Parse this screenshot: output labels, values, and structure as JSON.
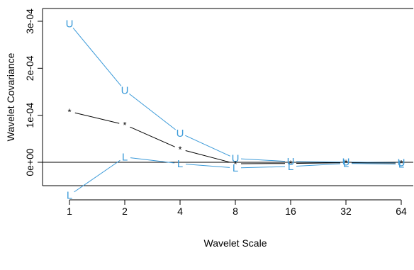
{
  "chart_data": {
    "type": "line",
    "title": "",
    "xlabel": "Wavelet Scale",
    "ylabel": "Wavelet Covariance",
    "x_scale": "log2",
    "x": [
      1,
      2,
      4,
      8,
      16,
      32,
      64
    ],
    "x_tick_labels": [
      "1",
      "2",
      "4",
      "8",
      "16",
      "32",
      "64"
    ],
    "y_ticks": [
      0,
      0.0001,
      0.0002,
      0.0003
    ],
    "y_tick_labels": [
      "0e+00",
      "1e-04",
      "2e-04",
      "3e-04"
    ],
    "ylim": [
      -8e-05,
      0.00031
    ],
    "reference_line_y": 0,
    "grid": false,
    "legend": "none",
    "series": [
      {
        "marker": "U",
        "color": "#3b9ad9",
        "values": [
          0.000295,
          0.000153,
          6.2e-05,
          8e-06,
          1.5e-06,
          5e-07,
          -1e-06
        ]
      },
      {
        "marker": "*",
        "color": "#000000",
        "values": [
          0.000108,
          8e-05,
          2.8e-05,
          -3e-06,
          -2.5e-06,
          -1e-06,
          -1.5e-06
        ]
      },
      {
        "marker": "L",
        "color": "#3b9ad9",
        "values": [
          -7e-05,
          1.1e-05,
          -3e-06,
          -1.2e-05,
          -9e-06,
          -2.5e-06,
          -4e-06
        ]
      }
    ]
  }
}
